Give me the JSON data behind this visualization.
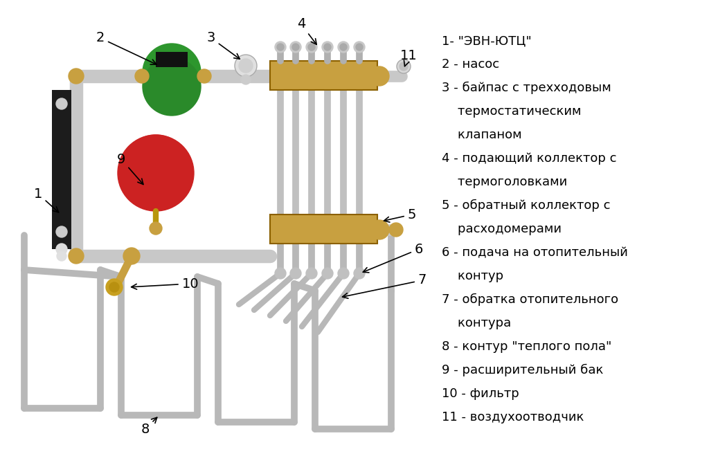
{
  "bg_color": "#ffffff",
  "pipe_color": "#c0c0c0",
  "pipe_lw": 12,
  "collector_color": "#c8a040",
  "pump_color": "#2d8a2d",
  "tank_color": "#cc2222",
  "black_color": "#1a1a1a",
  "loop_color": "#b8b8b8",
  "loop_lw": 7,
  "label_fontsize": 14,
  "legend_fontsize": 13,
  "legend_lines": [
    "1- \"ЭВН-ЮТЦ\"",
    "2 - насос",
    "3 - байпас с трехходовым",
    "    термостатическим",
    "    клапаном",
    "4 - подающий коллектор с",
    "    термоголовками",
    "5 - обратный коллектор с",
    "    расходомерами",
    "6 - подача на отопительный",
    "    контур",
    "7 - обратка отопительного",
    "    контура",
    "8 - контур \"теплого пола\"",
    "9 - расширительный бак",
    "10 - фильтр",
    "11 - воздухоотводчик"
  ]
}
